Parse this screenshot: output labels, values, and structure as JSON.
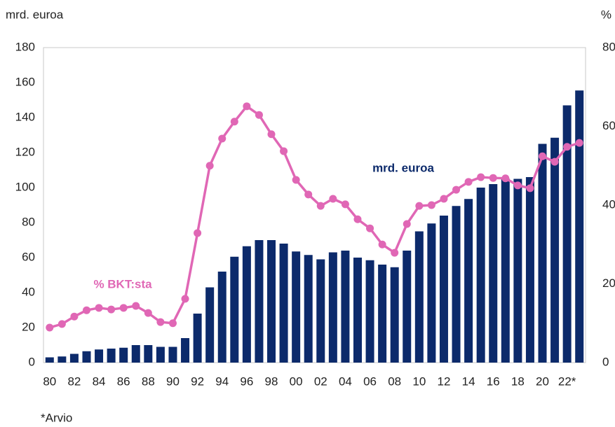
{
  "chart_data": {
    "type": "bar_line",
    "y_label": "mrd. euroa",
    "y2_label": "%",
    "footnote": "*Arvio",
    "categories": [
      "80",
      null,
      "82",
      null,
      "84",
      null,
      "86",
      null,
      "88",
      null,
      "90",
      null,
      "92",
      null,
      "94",
      null,
      "96",
      null,
      "98",
      null,
      "00",
      null,
      "02",
      null,
      "04",
      null,
      "06",
      null,
      "08",
      null,
      "10",
      null,
      "12",
      null,
      "14",
      null,
      "16",
      null,
      "18",
      null,
      "20",
      null,
      "22*",
      null
    ],
    "series": [
      {
        "name": "mrd. euroa",
        "type": "bar",
        "color": "#0c2a6b",
        "axis": "y",
        "values": [
          3,
          3.5,
          5,
          6.5,
          7.5,
          8,
          8.5,
          10,
          10,
          9,
          9,
          14,
          28,
          43,
          52,
          60.5,
          66.5,
          70,
          70,
          68,
          63.5,
          61.5,
          59,
          63,
          64,
          60,
          58.5,
          56,
          54.5,
          64,
          75,
          79.5,
          84,
          89.5,
          93.5,
          100,
          102,
          105,
          105,
          106,
          125,
          128.5,
          147,
          155.5
        ]
      },
      {
        "name": "% BKT:sta",
        "type": "line",
        "color": "#e067b5",
        "axis": "y2",
        "values": [
          8.9,
          9.8,
          11.7,
          13.3,
          13.9,
          13.5,
          13.9,
          14.4,
          12.6,
          10.3,
          10,
          16.2,
          32.9,
          50,
          56.9,
          61.2,
          65.1,
          62.9,
          58,
          53.7,
          46.4,
          42.7,
          39.8,
          41.6,
          40.2,
          36.4,
          34.1,
          30,
          27.9,
          35.2,
          39.8,
          40,
          41.6,
          43.9,
          45.9,
          47.1,
          46.9,
          46.8,
          45,
          44.3,
          52.4,
          51,
          54.8,
          55.8
        ]
      }
    ],
    "ylim": [
      0,
      180
    ],
    "yticks": [
      0,
      20,
      40,
      60,
      80,
      100,
      120,
      140,
      160,
      180
    ],
    "y2lim": [
      0,
      80
    ],
    "y2ticks": [
      0,
      20,
      40,
      60,
      80
    ]
  }
}
